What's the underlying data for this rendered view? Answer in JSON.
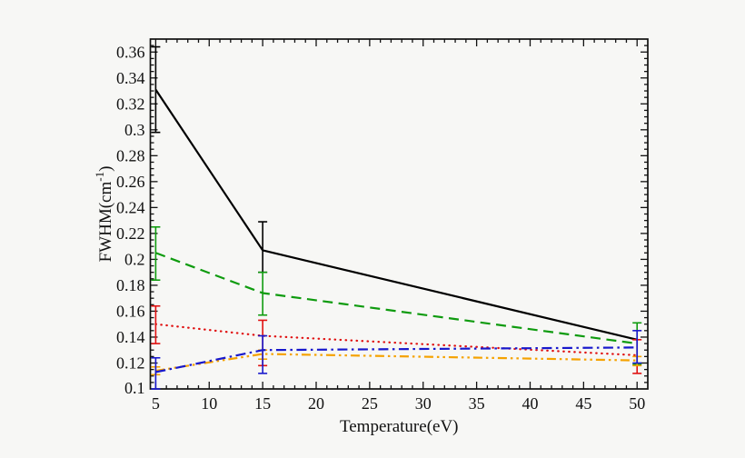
{
  "chart_data": {
    "type": "line",
    "title": "",
    "xlabel": "Temperature(eV)",
    "ylabel": {
      "text": "FWHM(cm",
      "sup": "-1",
      "close": ")"
    },
    "xlim": [
      4.5,
      51
    ],
    "ylim": [
      0.1,
      0.37
    ],
    "x_major_ticks": [
      5,
      10,
      15,
      20,
      25,
      30,
      35,
      40,
      45,
      50
    ],
    "x_minor_step": 1,
    "y_major_step": 0.02,
    "y_minor_step": 0.005,
    "grid": false,
    "legend": "none",
    "frame_color": "#111111",
    "background": "#f7f7f5",
    "x": [
      5,
      15,
      50
    ],
    "series": [
      {
        "name": "black-solid",
        "color": "#000000",
        "style": "solid",
        "values": [
          0.331,
          0.207,
          0.138
        ],
        "err_lo": [
          0.298,
          0.19,
          0.138
        ],
        "err_hi": [
          0.364,
          0.229,
          0.138
        ]
      },
      {
        "name": "green-dashed",
        "color": "#0f9b0f",
        "style": "dashed",
        "values": [
          0.205,
          0.174,
          0.135
        ],
        "err_lo": [
          0.184,
          0.157,
          0.119
        ],
        "err_hi": [
          0.225,
          0.19,
          0.151
        ]
      },
      {
        "name": "red-dotted",
        "color": "#e01010",
        "style": "dotted",
        "values": [
          0.15,
          0.141,
          0.126
        ],
        "err_lo": [
          0.135,
          0.118,
          0.112
        ],
        "err_hi": [
          0.164,
          0.153,
          0.138
        ]
      },
      {
        "name": "orange-dash-dot-dot",
        "color": "#f5a200",
        "style": "dash-dot-dot",
        "values": [
          0.114,
          0.127,
          0.122
        ],
        "err_lo": [
          0.111,
          0.123,
          0.118
        ],
        "err_hi": [
          0.117,
          0.13,
          0.125
        ]
      },
      {
        "name": "blue-dash-dot",
        "color": "#1818cc",
        "style": "dash-dot",
        "values": [
          0.113,
          0.13,
          0.132
        ],
        "err_lo": [
          0.1,
          0.112,
          0.12
        ],
        "err_hi": [
          0.124,
          0.141,
          0.145
        ]
      }
    ]
  }
}
